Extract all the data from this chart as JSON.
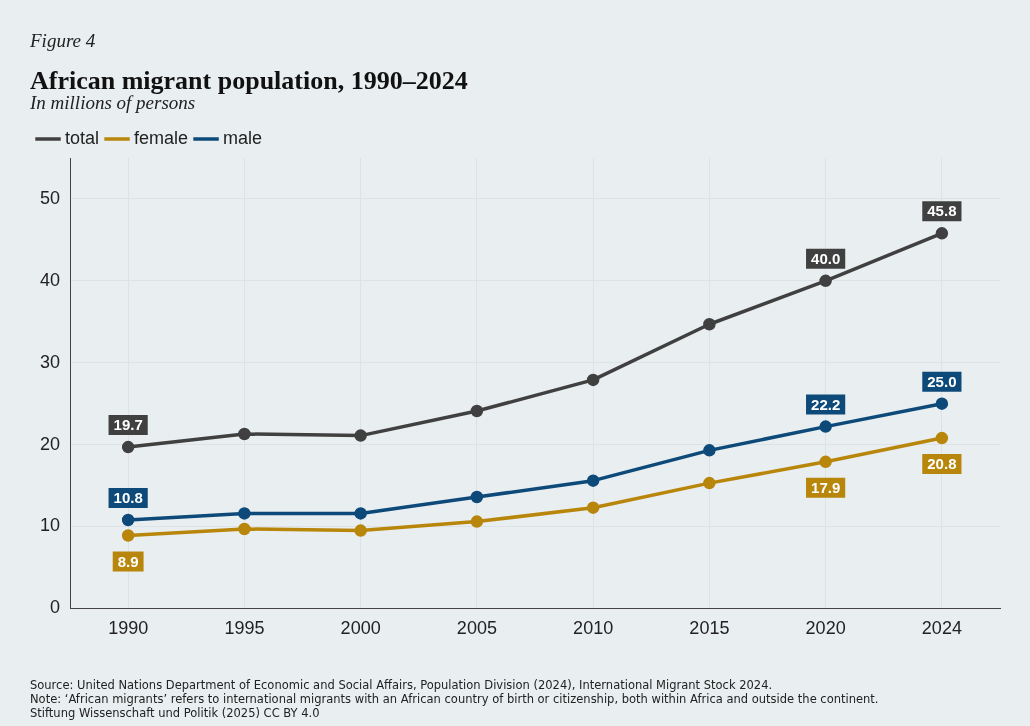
{
  "chart_data": {
    "type": "line",
    "title": "African migrant population, 1990–2024",
    "subtitle": "In millions of persons",
    "categories": [
      "1990",
      "1995",
      "2000",
      "2005",
      "2010",
      "2015",
      "2020",
      "2024"
    ],
    "series": [
      {
        "name": "total",
        "color": "#404040",
        "values": [
          19.7,
          21.3,
          21.1,
          24.1,
          27.9,
          34.7,
          40.0,
          45.8
        ],
        "value_labels": [
          "19.7",
          null,
          null,
          null,
          null,
          null,
          "40.0",
          "45.8"
        ]
      },
      {
        "name": "female",
        "color": "#b8860b",
        "values": [
          8.9,
          9.7,
          9.5,
          10.6,
          12.3,
          15.3,
          17.9,
          20.8
        ],
        "value_labels": [
          "8.9",
          null,
          null,
          null,
          null,
          null,
          "17.9",
          "20.8"
        ]
      },
      {
        "name": "male",
        "color": "#0d4a7a",
        "values": [
          10.8,
          11.6,
          11.6,
          13.6,
          15.6,
          19.3,
          22.2,
          25.0
        ],
        "value_labels": [
          "10.8",
          null,
          null,
          null,
          null,
          null,
          "22.2",
          "25.0"
        ]
      }
    ],
    "ylim": [
      0,
      55
    ],
    "yticks": [
      0,
      10,
      20,
      30,
      40,
      50
    ],
    "grid": true,
    "legend": "top left",
    "marker": "circle",
    "line_style": "solid",
    "annotations": [
      "Figure 4",
      "Source: United Nations Department of Economic and Social Affairs, Population Division (2024), International Migrant Stock 2024.",
      "Note: ‘African migrants’ refers to international migrants with an African country of birth or citizenship, both within Africa and outside the continent.",
      "Stiftung Wissenschaft und Politik (2025) CC BY 4.0"
    ]
  }
}
